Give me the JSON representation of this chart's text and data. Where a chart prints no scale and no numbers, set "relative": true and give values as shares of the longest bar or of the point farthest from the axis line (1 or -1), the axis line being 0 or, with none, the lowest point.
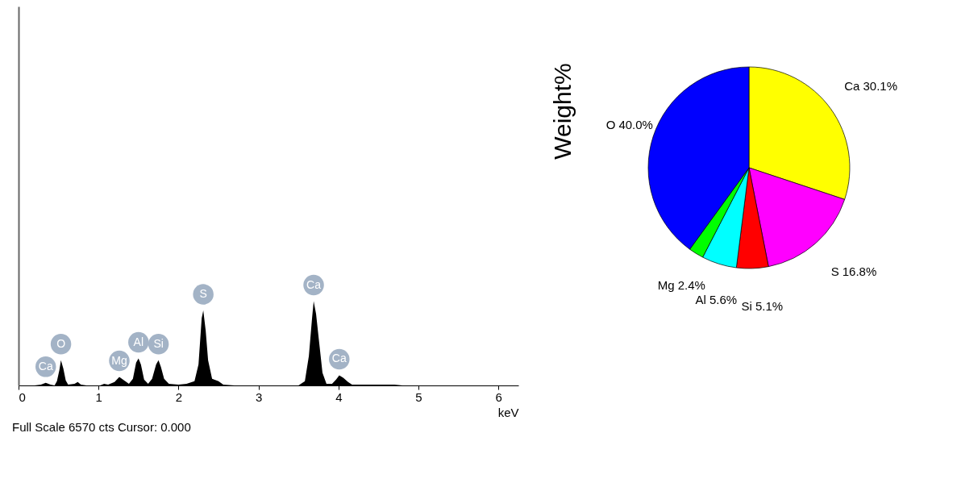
{
  "chart_data": [
    {
      "type": "area",
      "relative": true,
      "xlabel": "keV",
      "xlim": [
        0,
        6.25
      ],
      "xticks": [
        0,
        1,
        2,
        3,
        4,
        5,
        6
      ],
      "grid": false,
      "series": [
        {
          "color": "#000000",
          "x": [
            0.0,
            0.2,
            0.28,
            0.34,
            0.4,
            0.45,
            0.48,
            0.51,
            0.53,
            0.56,
            0.59,
            0.62,
            0.7,
            0.74,
            0.78,
            0.85,
            1.02,
            1.07,
            1.12,
            1.2,
            1.26,
            1.32,
            1.38,
            1.43,
            1.47,
            1.5,
            1.53,
            1.57,
            1.62,
            1.67,
            1.72,
            1.75,
            1.78,
            1.82,
            1.88,
            2.0,
            2.1,
            2.2,
            2.25,
            2.29,
            2.31,
            2.34,
            2.37,
            2.42,
            2.5,
            2.56,
            2.7,
            3.5,
            3.58,
            3.63,
            3.67,
            3.69,
            3.72,
            3.76,
            3.8,
            3.85,
            3.92,
            3.97,
            4.01,
            4.06,
            4.12,
            4.17,
            4.25,
            4.5,
            4.7,
            4.8,
            6.25
          ],
          "values": [
            0,
            0,
            0.01,
            0.03,
            0.01,
            0,
            0.05,
            0.18,
            0.3,
            0.2,
            0.06,
            0.01,
            0.02,
            0.04,
            0.01,
            0,
            0,
            0.02,
            0.01,
            0.04,
            0.1,
            0.06,
            0.02,
            0.08,
            0.27,
            0.32,
            0.25,
            0.07,
            0.02,
            0.08,
            0.25,
            0.3,
            0.22,
            0.08,
            0.02,
            0.01,
            0.02,
            0.05,
            0.25,
            0.8,
            0.89,
            0.65,
            0.3,
            0.08,
            0.05,
            0.01,
            0,
            0,
            0.05,
            0.35,
            0.8,
            1.0,
            0.85,
            0.5,
            0.15,
            0.02,
            0.02,
            0.07,
            0.12,
            0.09,
            0.04,
            0.01,
            0.01,
            0.01,
            0.01,
            0,
            0
          ]
        }
      ],
      "annotations": [
        {
          "text": "Ca",
          "x": 0.34,
          "y": 0.03
        },
        {
          "text": "O",
          "x": 0.53,
          "y": 0.3
        },
        {
          "text": "Mg",
          "x": 1.26,
          "y": 0.1
        },
        {
          "text": "Al",
          "x": 1.5,
          "y": 0.32
        },
        {
          "text": "Si",
          "x": 1.75,
          "y": 0.3
        },
        {
          "text": "S",
          "x": 2.31,
          "y": 0.89
        },
        {
          "text": "Ca",
          "x": 3.69,
          "y": 1.0
        },
        {
          "text": "Ca",
          "x": 4.01,
          "y": 0.12
        },
        "Full Scale 6570 cts Cursor: 0.000"
      ]
    },
    {
      "type": "pie",
      "ylabel": "Weight%",
      "legend": false,
      "categories": [
        "Ca",
        "S",
        "Si",
        "Al",
        "Mg",
        "O"
      ],
      "values": [
        30.1,
        16.8,
        5.1,
        5.6,
        2.4,
        40.0
      ],
      "colors": [
        "#ffff00",
        "#ff00ff",
        "#ff0000",
        "#00ffff",
        "#00ff00",
        "#0000ff"
      ],
      "value_labels": [
        "30.1%",
        "16.8%",
        "5.1%",
        "5.6%",
        "2.4%",
        "40.0%"
      ]
    }
  ]
}
